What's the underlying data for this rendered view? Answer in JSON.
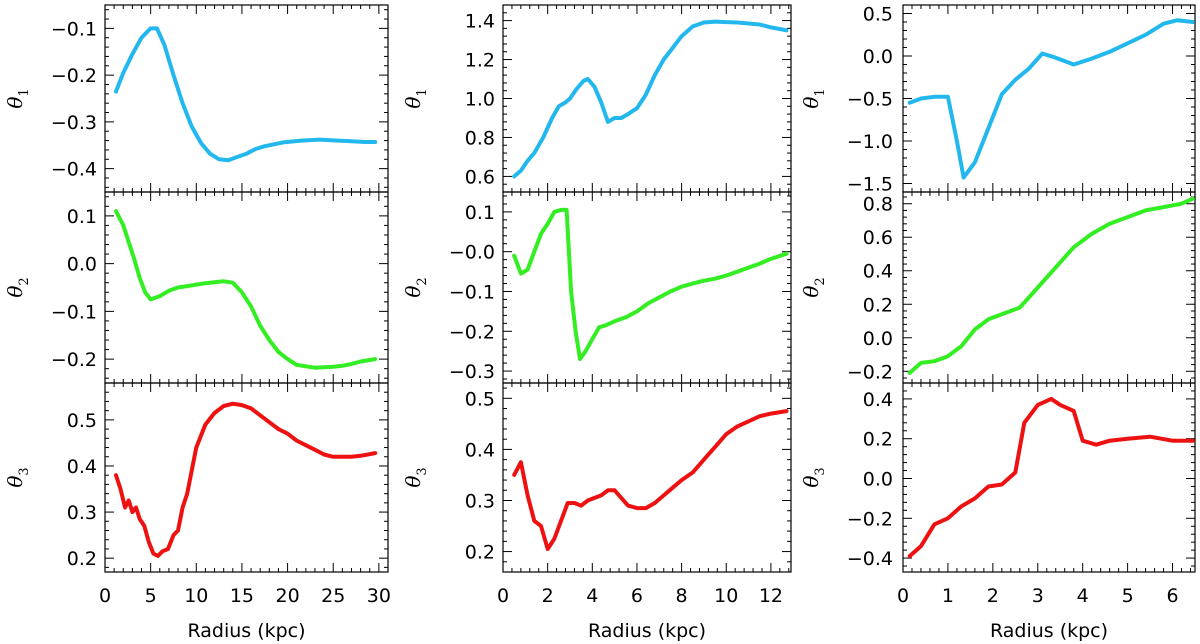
{
  "colors": {
    "theta1": "#22b8ee",
    "theta2": "#33ee22",
    "theta3": "#ee1111"
  },
  "chart_data": [
    {
      "type": "line",
      "columns": [
        {
          "xlabel": "Radius (kpc)",
          "xlim": [
            0,
            31
          ],
          "xticks": [
            0,
            5,
            10,
            15,
            20,
            25,
            30
          ],
          "xtick_labels": [
            "0",
            "5",
            "10",
            "15",
            "20",
            "25",
            "30"
          ],
          "panels": [
            {
              "ylabel": "θ",
              "ylabel_sub": "1",
              "series_color": "theta1",
              "ylim": [
                -0.45,
                -0.05
              ],
              "yticks": [
                -0.1,
                -0.2,
                -0.3,
                -0.4
              ],
              "ytick_labels": [
                "−0.1",
                "−0.2",
                "−0.3",
                "−0.4"
              ],
              "x": [
                1.2,
                2,
                3,
                4,
                5,
                5.7,
                6.5,
                7.5,
                8.5,
                9.5,
                10.5,
                11.5,
                12.5,
                13.5,
                14.5,
                15.5,
                16.5,
                17.5,
                18.5,
                19.5,
                20.5,
                21.5,
                22.5,
                23.5,
                24.5,
                25.5,
                26.5,
                27.5,
                28.5,
                29.6
              ],
              "y": [
                -0.235,
                -0.195,
                -0.155,
                -0.12,
                -0.1,
                -0.1,
                -0.135,
                -0.2,
                -0.26,
                -0.31,
                -0.345,
                -0.368,
                -0.38,
                -0.382,
                -0.375,
                -0.368,
                -0.358,
                -0.352,
                -0.348,
                -0.344,
                -0.342,
                -0.34,
                -0.339,
                -0.338,
                -0.339,
                -0.34,
                -0.341,
                -0.342,
                -0.343,
                -0.343
              ]
            },
            {
              "ylabel": "θ",
              "ylabel_sub": "2",
              "series_color": "theta2",
              "ylim": [
                -0.25,
                0.15
              ],
              "yticks": [
                0.1,
                0.0,
                -0.1,
                -0.2
              ],
              "ytick_labels": [
                "0.1",
                "0.0",
                "−0.1",
                "−0.2"
              ],
              "x": [
                1.2,
                2,
                2.6,
                3.2,
                3.8,
                4.4,
                5,
                6,
                7,
                8,
                9,
                10,
                11,
                12,
                13,
                14,
                15,
                16,
                17,
                18,
                19,
                20,
                21,
                22,
                23,
                24,
                25,
                26,
                27,
                28,
                29.6
              ],
              "y": [
                0.11,
                0.08,
                0.045,
                0.01,
                -0.03,
                -0.06,
                -0.075,
                -0.068,
                -0.057,
                -0.05,
                -0.047,
                -0.044,
                -0.041,
                -0.039,
                -0.037,
                -0.04,
                -0.06,
                -0.09,
                -0.13,
                -0.16,
                -0.185,
                -0.2,
                -0.212,
                -0.215,
                -0.218,
                -0.217,
                -0.216,
                -0.214,
                -0.21,
                -0.205,
                -0.2
              ]
            },
            {
              "ylabel": "θ",
              "ylabel_sub": "3",
              "series_color": "theta3",
              "ylim": [
                0.17,
                0.58
              ],
              "yticks": [
                0.2,
                0.3,
                0.4,
                0.5
              ],
              "ytick_labels": [
                "0.2",
                "0.3",
                "0.4",
                "0.5"
              ],
              "x": [
                1.2,
                1.7,
                2.2,
                2.6,
                3.0,
                3.4,
                3.8,
                4.3,
                4.8,
                5.3,
                5.8,
                6.3,
                6.9,
                7.5,
                8,
                8.5,
                9,
                9.5,
                10,
                11,
                12,
                13,
                14,
                15,
                16,
                17,
                18,
                19,
                20,
                21,
                22,
                23,
                24,
                25,
                26,
                27,
                28,
                29.6
              ],
              "y": [
                0.38,
                0.35,
                0.31,
                0.325,
                0.3,
                0.31,
                0.285,
                0.27,
                0.235,
                0.21,
                0.205,
                0.215,
                0.22,
                0.25,
                0.26,
                0.31,
                0.34,
                0.39,
                0.44,
                0.49,
                0.515,
                0.53,
                0.535,
                0.532,
                0.525,
                0.51,
                0.495,
                0.48,
                0.47,
                0.455,
                0.445,
                0.435,
                0.425,
                0.42,
                0.42,
                0.42,
                0.422,
                0.428
              ]
            }
          ]
        },
        {
          "xlabel": "Radius (kpc)",
          "xlim": [
            0,
            12.9
          ],
          "xticks": [
            0,
            2,
            4,
            6,
            8,
            10,
            12
          ],
          "xtick_labels": [
            "0",
            "2",
            "4",
            "6",
            "8",
            "10",
            "12"
          ],
          "panels": [
            {
              "ylabel": "θ",
              "ylabel_sub": "1",
              "series_color": "theta1",
              "ylim": [
                0.52,
                1.48
              ],
              "yticks": [
                0.6,
                0.8,
                1.0,
                1.2,
                1.4
              ],
              "ytick_labels": [
                "0.6",
                "0.8",
                "1.0",
                "1.2",
                "1.4"
              ],
              "x": [
                0.5,
                0.8,
                1.1,
                1.4,
                1.8,
                2.2,
                2.5,
                2.8,
                3.0,
                3.3,
                3.6,
                3.8,
                4.1,
                4.4,
                4.7,
                5.0,
                5.3,
                5.6,
                6.0,
                6.4,
                6.8,
                7.2,
                7.6,
                8.0,
                8.5,
                9.0,
                9.5,
                10,
                10.5,
                11,
                11.5,
                12,
                12.7
              ],
              "y": [
                0.6,
                0.63,
                0.68,
                0.72,
                0.8,
                0.9,
                0.96,
                0.98,
                1.0,
                1.05,
                1.09,
                1.1,
                1.06,
                0.98,
                0.88,
                0.9,
                0.9,
                0.92,
                0.95,
                1.02,
                1.12,
                1.2,
                1.26,
                1.32,
                1.37,
                1.39,
                1.395,
                1.392,
                1.39,
                1.385,
                1.38,
                1.365,
                1.35
              ]
            },
            {
              "ylabel": "θ",
              "ylabel_sub": "2",
              "series_color": "theta2",
              "ylim": [
                -0.33,
                0.15
              ],
              "yticks": [
                0.1,
                0.0,
                -0.1,
                -0.2,
                -0.3
              ],
              "ytick_labels": [
                "0.1",
                "−0.0",
                "−0.1",
                "−0.2",
                "−0.3"
              ],
              "x": [
                0.5,
                0.8,
                1.1,
                1.4,
                1.7,
                2.0,
                2.3,
                2.6,
                2.85,
                3.05,
                3.25,
                3.45,
                3.7,
                4.0,
                4.3,
                4.6,
                5,
                5.5,
                6,
                6.5,
                7,
                7.5,
                8,
                8.5,
                9,
                9.5,
                10,
                10.5,
                11,
                11.5,
                12,
                12.7
              ],
              "y": [
                -0.01,
                -0.055,
                -0.045,
                0.0,
                0.045,
                0.07,
                0.1,
                0.105,
                0.105,
                -0.1,
                -0.2,
                -0.27,
                -0.25,
                -0.22,
                -0.19,
                -0.185,
                -0.175,
                -0.165,
                -0.15,
                -0.13,
                -0.115,
                -0.1,
                -0.088,
                -0.08,
                -0.073,
                -0.068,
                -0.06,
                -0.05,
                -0.04,
                -0.03,
                -0.018,
                -0.005
              ]
            },
            {
              "ylabel": "θ",
              "ylabel_sub": "3",
              "series_color": "theta3",
              "ylim": [
                0.16,
                0.53
              ],
              "yticks": [
                0.2,
                0.3,
                0.4,
                0.5
              ],
              "ytick_labels": [
                "0.2",
                "0.3",
                "0.4",
                "0.5"
              ],
              "x": [
                0.5,
                0.8,
                1.1,
                1.4,
                1.7,
                2.0,
                2.3,
                2.6,
                2.9,
                3.2,
                3.5,
                3.8,
                4.1,
                4.4,
                4.7,
                5.0,
                5.3,
                5.6,
                6.0,
                6.4,
                6.8,
                7.2,
                7.6,
                8.0,
                8.5,
                9.0,
                9.5,
                10,
                10.5,
                11,
                11.5,
                12,
                12.7
              ],
              "y": [
                0.35,
                0.375,
                0.31,
                0.26,
                0.25,
                0.205,
                0.225,
                0.26,
                0.295,
                0.295,
                0.29,
                0.3,
                0.305,
                0.31,
                0.32,
                0.32,
                0.305,
                0.29,
                0.285,
                0.285,
                0.295,
                0.31,
                0.325,
                0.34,
                0.355,
                0.38,
                0.405,
                0.43,
                0.445,
                0.455,
                0.465,
                0.47,
                0.475
              ]
            }
          ]
        },
        {
          "xlabel": "Radius (kpc)",
          "xlim": [
            0,
            6.5
          ],
          "xticks": [
            0,
            1,
            2,
            3,
            4,
            5,
            6
          ],
          "xtick_labels": [
            "0",
            "1",
            "2",
            "3",
            "4",
            "5",
            "6"
          ],
          "panels": [
            {
              "ylabel": "θ",
              "ylabel_sub": "1",
              "series_color": "theta1",
              "ylim": [
                -1.6,
                0.6
              ],
              "yticks": [
                0.5,
                0.0,
                -0.5,
                -1.0,
                -1.5
              ],
              "ytick_labels": [
                "0.5",
                "0.0",
                "−0.5",
                "−1.0",
                "−1.5"
              ],
              "x": [
                0.15,
                0.4,
                0.7,
                1.0,
                1.2,
                1.35,
                1.6,
                1.9,
                2.2,
                2.5,
                2.8,
                3.1,
                3.4,
                3.8,
                4.2,
                4.6,
                5.0,
                5.4,
                5.8,
                6.1,
                6.45
              ],
              "y": [
                -0.55,
                -0.5,
                -0.48,
                -0.48,
                -1.0,
                -1.43,
                -1.25,
                -0.85,
                -0.45,
                -0.28,
                -0.15,
                0.03,
                -0.02,
                -0.1,
                -0.03,
                0.05,
                0.15,
                0.25,
                0.38,
                0.42,
                0.4
              ]
            },
            {
              "ylabel": "θ",
              "ylabel_sub": "2",
              "series_color": "theta2",
              "ylim": [
                -0.27,
                0.87
              ],
              "yticks": [
                0.8,
                0.6,
                0.4,
                0.2,
                0.0,
                -0.2
              ],
              "ytick_labels": [
                "0.8",
                "0.6",
                "0.4",
                "0.2",
                "0.0",
                "−0.2"
              ],
              "x": [
                0.15,
                0.4,
                0.7,
                1.0,
                1.3,
                1.6,
                1.9,
                2.2,
                2.6,
                3.0,
                3.4,
                3.8,
                4.2,
                4.6,
                5.0,
                5.4,
                5.8,
                6.2,
                6.45
              ],
              "y": [
                -0.21,
                -0.15,
                -0.14,
                -0.11,
                -0.05,
                0.05,
                0.11,
                0.14,
                0.18,
                0.3,
                0.42,
                0.54,
                0.62,
                0.68,
                0.72,
                0.76,
                0.78,
                0.8,
                0.83
              ]
            },
            {
              "ylabel": "θ",
              "ylabel_sub": "3",
              "series_color": "theta3",
              "ylim": [
                -0.47,
                0.48
              ],
              "yticks": [
                0.4,
                0.2,
                0.0,
                -0.2,
                -0.4
              ],
              "ytick_labels": [
                "0.4",
                "0.2",
                "0.0",
                "−0.2",
                "−0.4"
              ],
              "x": [
                0.15,
                0.4,
                0.7,
                1.0,
                1.3,
                1.6,
                1.9,
                2.2,
                2.5,
                2.7,
                3.0,
                3.3,
                3.5,
                3.8,
                4.0,
                4.3,
                4.6,
                5.0,
                5.5,
                6.0,
                6.45
              ],
              "y": [
                -0.39,
                -0.34,
                -0.23,
                -0.2,
                -0.14,
                -0.1,
                -0.04,
                -0.03,
                0.03,
                0.28,
                0.37,
                0.4,
                0.37,
                0.34,
                0.19,
                0.17,
                0.19,
                0.2,
                0.21,
                0.19,
                0.19
              ]
            }
          ]
        }
      ]
    }
  ]
}
